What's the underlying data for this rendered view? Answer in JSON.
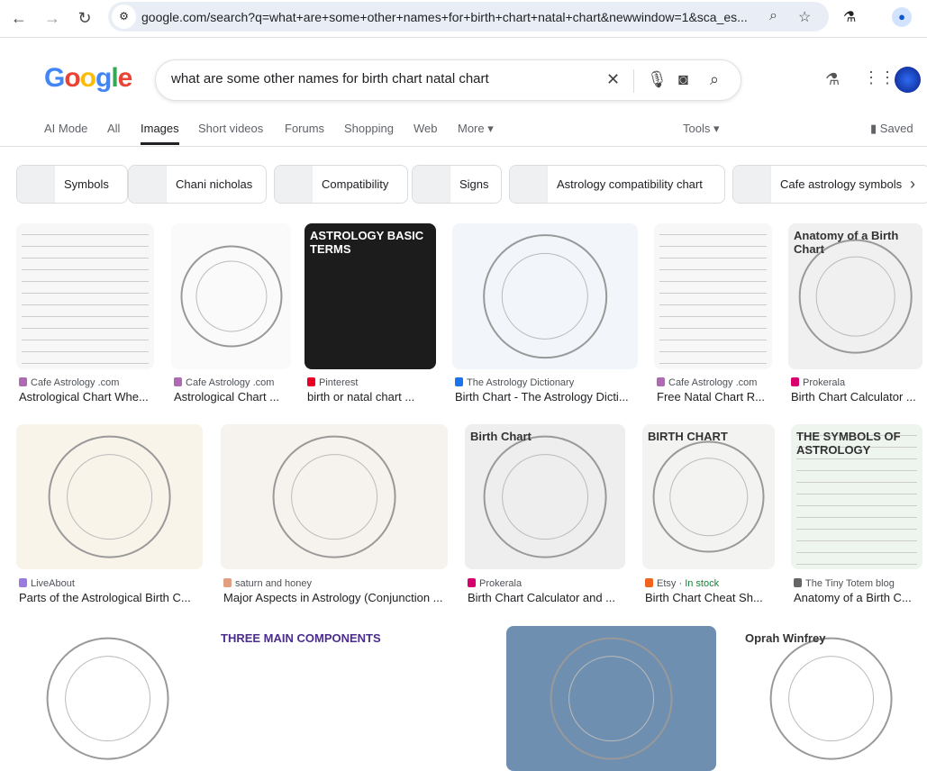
{
  "browser": {
    "url": "google.com/search?q=what+are+some+other+names+for+birth+chart+natal+chart&newwindow=1&sca_es..."
  },
  "logo": "Google",
  "search": {
    "query": "what are some other names for birth chart natal chart"
  },
  "tabs": [
    {
      "label": "AI Mode"
    },
    {
      "label": "All"
    },
    {
      "label": "Images",
      "active": true
    },
    {
      "label": "Short videos"
    },
    {
      "label": "Forums"
    },
    {
      "label": "Shopping"
    },
    {
      "label": "Web"
    },
    {
      "label": "More ▾"
    }
  ],
  "tools": "Tools ▾",
  "saved": "Saved",
  "chips": [
    "Symbols",
    "Chani nicholas",
    "Compatibility",
    "Signs",
    "Astrology compatibility chart",
    "Cafe astrology symbols"
  ],
  "results": [
    {
      "source": "Cafe Astrology .com",
      "title": "Astrological Chart Whe...",
      "fav": "#b06ab3",
      "bg": "#f7f7f7",
      "style": "table"
    },
    {
      "source": "Cafe Astrology .com",
      "title": "Astrological Chart ...",
      "fav": "#b06ab3",
      "bg": "#fafafa",
      "style": "wheel"
    },
    {
      "source": "Pinterest",
      "title": "birth or natal chart ...",
      "fav": "#e60023",
      "bg": "#1c1c1c",
      "style": "text",
      "overlay": "ASTROLOGY BASIC TERMS"
    },
    {
      "source": "The Astrology Dictionary",
      "title": "Birth Chart - The Astrology Dicti...",
      "fav": "#1a73e8",
      "bg": "#f2f6fa",
      "style": "wheel"
    },
    {
      "source": "Cafe Astrology .com",
      "title": "Free Natal Chart R...",
      "fav": "#b06ab3",
      "bg": "#f7f7f7",
      "style": "table"
    },
    {
      "source": "Prokerala",
      "title": "Birth Chart Calculator ...",
      "fav": "#d6006e",
      "bg": "#f0f0f0",
      "style": "wheel",
      "overlay": "Anatomy of a Birth Chart"
    },
    {
      "source": "LiveAbout",
      "title": "Parts of the Astrological Birth C...",
      "fav": "#9b7be0",
      "bg": "#f9f4ea",
      "style": "wheel"
    },
    {
      "source": "saturn and honey",
      "title": "Major Aspects in Astrology (Conjunction ...",
      "fav": "#e0a080",
      "bg": "#f6f3ee",
      "style": "wheel"
    },
    {
      "source": "Prokerala",
      "title": "Birth Chart Calculator and ...",
      "fav": "#d6006e",
      "bg": "#eeeeee",
      "style": "wheel",
      "overlay": "Birth Chart"
    },
    {
      "source": "Etsy",
      "stock": "In stock",
      "title": "Birth Chart Cheat Sh...",
      "fav": "#f1641e",
      "bg": "#f3f3f1",
      "style": "wheel",
      "overlay": "BIRTH CHART"
    },
    {
      "source": "The Tiny Totem blog",
      "title": "Anatomy of a Birth C...",
      "fav": "#666666",
      "bg": "#eef5ef",
      "style": "table",
      "overlay": "THE SYMBOLS OF ASTROLOGY"
    },
    {
      "style": "wheel",
      "bg": "#ffffff"
    },
    {
      "style": "text",
      "bg": "#ffffff",
      "overlay": "THREE MAIN COMPONENTS"
    },
    {
      "style": "wheel",
      "bg": "#6f8fb0"
    },
    {
      "style": "wheel",
      "bg": "#ffffff",
      "overlay": "Oprah Winfrey"
    }
  ]
}
